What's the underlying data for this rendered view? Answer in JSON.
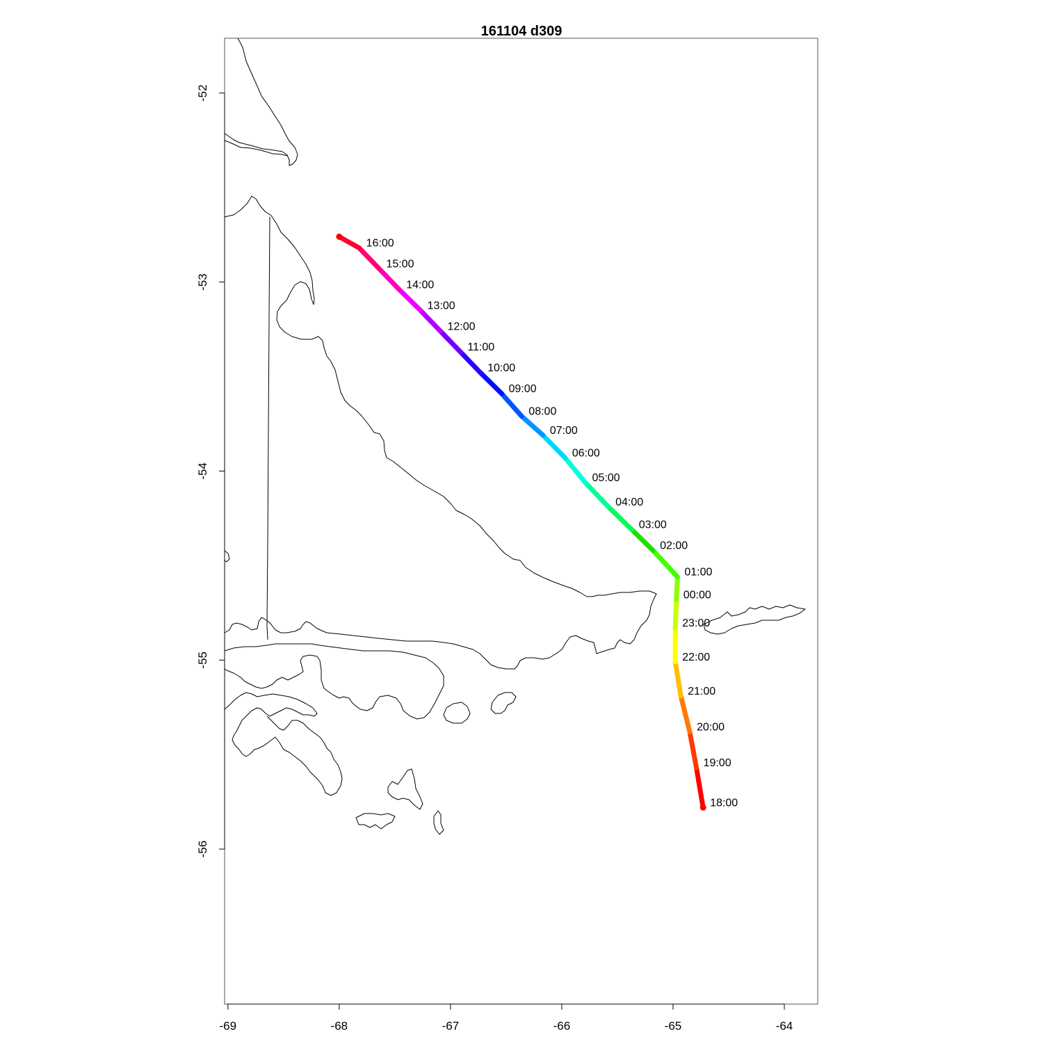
{
  "title": "161104   d309",
  "map": {
    "x_axis": {
      "ticks": [
        -69,
        -68,
        -67,
        -66,
        -65,
        -64
      ],
      "range": [
        -69.03,
        -63.7
      ]
    },
    "y_axis": {
      "ticks": [
        -52,
        -53,
        -54,
        -55,
        -56
      ],
      "range": [
        -56.82,
        -51.71
      ]
    },
    "features": [
      "coastline",
      "border"
    ],
    "track": {
      "color_scale": "rainbow",
      "points": [
        {
          "time": "18:00",
          "lon": -64.73,
          "lat": -55.78,
          "color": "#ff0000"
        },
        {
          "time": "19:00",
          "lon": -64.79,
          "lat": -55.57,
          "color": "#ff3a00"
        },
        {
          "time": "20:00",
          "lon": -64.85,
          "lat": -55.38,
          "color": "#ff7a00"
        },
        {
          "time": "21:00",
          "lon": -64.93,
          "lat": -55.19,
          "color": "#ffbf00"
        },
        {
          "time": "22:00",
          "lon": -64.98,
          "lat": -55.01,
          "color": "#ffff00"
        },
        {
          "time": "23:00",
          "lon": -64.98,
          "lat": -54.83,
          "color": "#ccff00"
        },
        {
          "time": "00:00",
          "lon": -64.97,
          "lat": -54.68,
          "color": "#8aff00"
        },
        {
          "time": "01:00",
          "lon": -64.96,
          "lat": -54.56,
          "color": "#44ff00"
        },
        {
          "time": "02:00",
          "lon": -65.18,
          "lat": -54.42,
          "color": "#1fe000"
        },
        {
          "time": "03:00",
          "lon": -65.37,
          "lat": -54.31,
          "color": "#00ff55"
        },
        {
          "time": "04:00",
          "lon": -65.58,
          "lat": -54.19,
          "color": "#00ff9a"
        },
        {
          "time": "05:00",
          "lon": -65.79,
          "lat": -54.06,
          "color": "#00ffdd"
        },
        {
          "time": "06:00",
          "lon": -65.97,
          "lat": -53.93,
          "color": "#00d8ff"
        },
        {
          "time": "07:00",
          "lon": -66.17,
          "lat": -53.81,
          "color": "#0095ff"
        },
        {
          "time": "08:00",
          "lon": -66.36,
          "lat": -53.71,
          "color": "#0055ff"
        },
        {
          "time": "09:00",
          "lon": -66.54,
          "lat": -53.59,
          "color": "#0010ff"
        },
        {
          "time": "10:00",
          "lon": -66.73,
          "lat": -53.48,
          "color": "#2f00ff"
        },
        {
          "time": "11:00",
          "lon": -66.91,
          "lat": -53.37,
          "color": "#7000ff"
        },
        {
          "time": "12:00",
          "lon": -67.09,
          "lat": -53.26,
          "color": "#b400ff"
        },
        {
          "time": "13:00",
          "lon": -67.27,
          "lat": -53.15,
          "color": "#f000ff"
        },
        {
          "time": "14:00",
          "lon": -67.46,
          "lat": -53.04,
          "color": "#ff00c0"
        },
        {
          "time": "15:00",
          "lon": -67.64,
          "lat": -52.93,
          "color": "#ff0078"
        },
        {
          "time": "16:00",
          "lon": -67.82,
          "lat": -52.82,
          "color": "#ff0030"
        },
        {
          "time": "",
          "lon": -68.0,
          "lat": -52.76,
          "color": "#ff0000"
        }
      ]
    }
  }
}
